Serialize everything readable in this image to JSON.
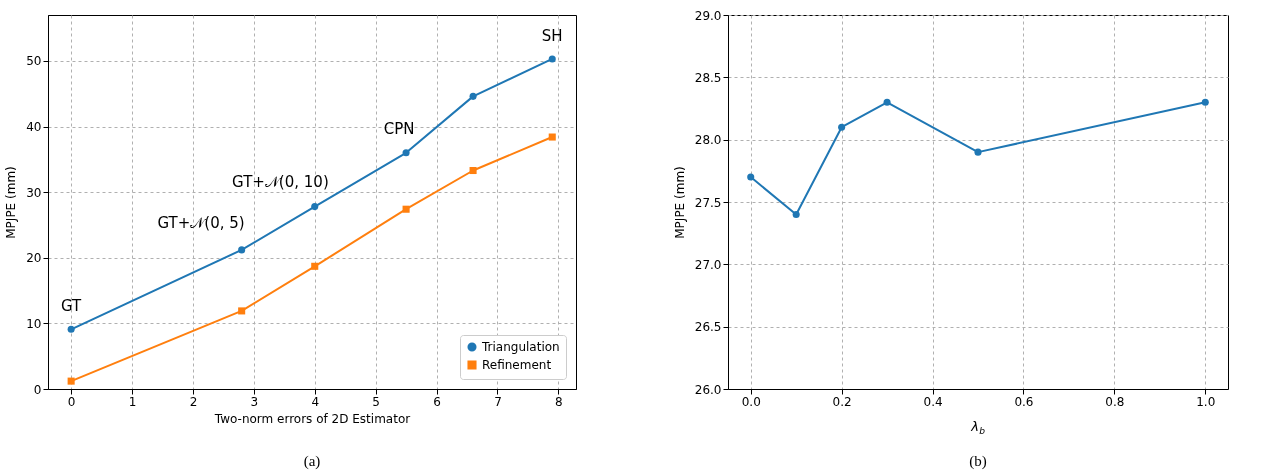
{
  "chart_data": [
    {
      "type": "line",
      "xlabel": "Two-norm errors of 2D Estimator",
      "ylabel": "MPJPE (mm)",
      "x": [
        0,
        2.8,
        4,
        5.5,
        6.6,
        7.9
      ],
      "series": [
        {
          "name": "Triangulation",
          "color": "#1f77b4",
          "marker": "circle",
          "values": [
            9.1,
            21.2,
            27.8,
            36.0,
            44.6,
            50.3
          ]
        },
        {
          "name": "Refinement",
          "color": "#ff7f0e",
          "marker": "square",
          "values": [
            1.2,
            11.9,
            18.7,
            27.4,
            33.3,
            38.4
          ]
        }
      ],
      "xlim": [
        -0.38,
        8.29
      ],
      "ylim": [
        0,
        57
      ],
      "xticks": [
        0,
        1,
        2,
        3,
        4,
        5,
        6,
        7,
        8
      ],
      "yticks": [
        0,
        10,
        20,
        30,
        40,
        50
      ],
      "annotations": [
        {
          "text": "GT",
          "x": 0,
          "y": 9.1
        },
        {
          "text": "GT+𝒩(0, 5)",
          "x": 2.8,
          "y": 21.2
        },
        {
          "text": "GT+𝒩(0, 10)",
          "x": 4,
          "y": 27.8
        },
        {
          "text": "CPN",
          "x": 5.5,
          "y": 36.0
        },
        {
          "text": "SH",
          "x": 7.9,
          "y": 50.3
        },
        "(a)"
      ],
      "grid": true,
      "legend": "bottom right",
      "line_style": "solid"
    },
    {
      "type": "line",
      "xlabel": "λ$_{b}$",
      "ylabel": "MPJPE (mm)",
      "x": [
        0,
        0.1,
        0.2,
        0.3,
        0.5,
        1.0
      ],
      "series": [
        {
          "color": "#1f77b4",
          "marker": "circle",
          "values": [
            27.7,
            27.4,
            28.1,
            28.3,
            27.9,
            28.3
          ]
        }
      ],
      "xlim": [
        -0.05,
        1.05
      ],
      "ylim": [
        26,
        29
      ],
      "xticks": [
        {
          "value": 0,
          "label": "0.0"
        },
        0.2,
        0.4,
        0.6,
        0.8,
        {
          "value": 1,
          "label": "1.0"
        }
      ],
      "yticks": [
        {
          "value": 26,
          "label": "26.0"
        },
        26.5,
        {
          "value": 27,
          "label": "27.0"
        },
        27.5,
        {
          "value": 28,
          "label": "28.0"
        },
        28.5,
        {
          "value": 29,
          "label": "29.0"
        }
      ],
      "annotations": [
        "(b)"
      ],
      "grid": true,
      "line_style": "solid"
    }
  ]
}
